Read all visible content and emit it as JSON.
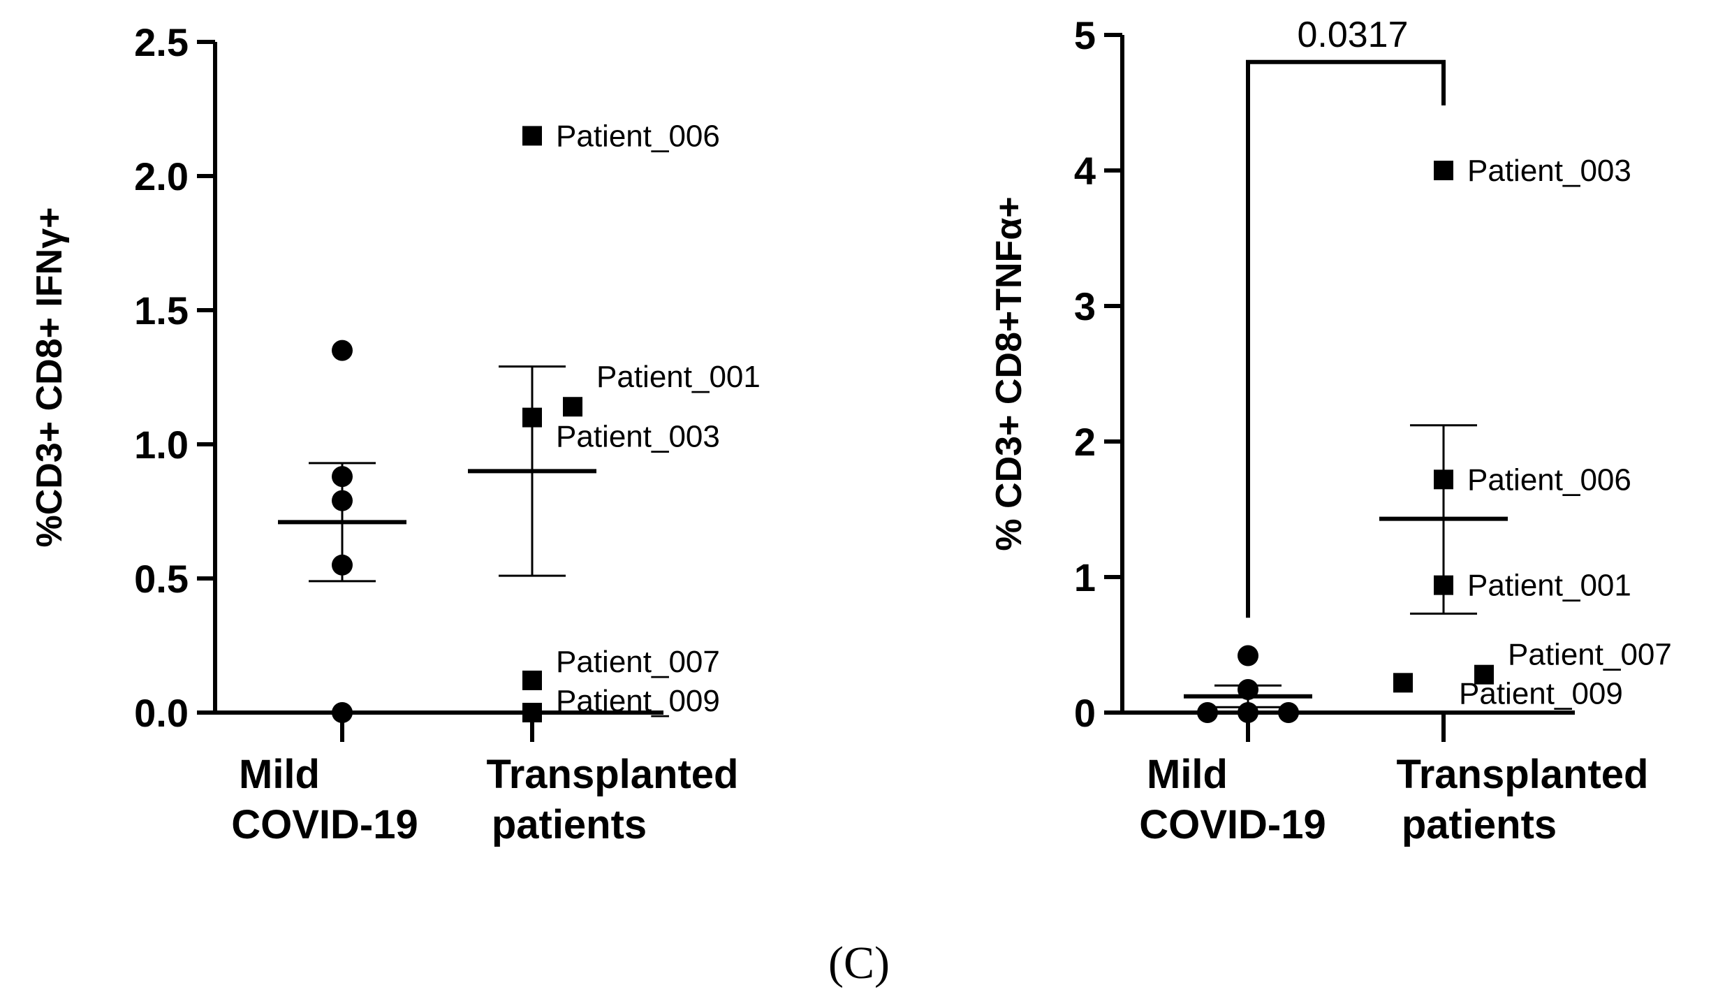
{
  "panel_label": "(C)",
  "chart_data": [
    {
      "type": "scatter",
      "ylabel": "%CD3+ CD8+ IFNγ+",
      "ylim": [
        0,
        2.5
      ],
      "yticks": [
        0,
        0.5,
        1,
        1.5,
        2,
        2.5
      ],
      "yticklabels": [
        "0.0",
        "0.5",
        "1.0",
        "1.5",
        "2.0",
        "2.5"
      ],
      "categories": [
        {
          "line1": "Mild",
          "line2": "COVID-19"
        },
        {
          "line1": "Transplanted",
          "line2": "patients"
        }
      ],
      "series": [
        {
          "name": "Mild COVID-19",
          "marker": "circle",
          "cat": 0,
          "points": [
            {
              "v": 1.35,
              "off": 0,
              "label": ""
            },
            {
              "v": 0.88,
              "off": 0,
              "label": ""
            },
            {
              "v": 0.79,
              "off": 0,
              "label": ""
            },
            {
              "v": 0.55,
              "off": 0,
              "label": ""
            },
            {
              "v": 0.0,
              "off": 0,
              "label": ""
            }
          ],
          "mean": 0.71,
          "err_low": 0.49,
          "err_high": 0.93
        },
        {
          "name": "Transplanted patients",
          "marker": "square",
          "cat": 1,
          "points": [
            {
              "v": 2.15,
              "off": 0,
              "label": "Patient_006"
            },
            {
              "v": 1.14,
              "off": 1,
              "label": "Patient_001"
            },
            {
              "v": 1.1,
              "off": 0,
              "label": "Patient_003"
            },
            {
              "v": 0.12,
              "off": 0,
              "label": "Patient_007"
            },
            {
              "v": 0.0,
              "off": 0,
              "label": "Patient_009"
            }
          ],
          "mean": 0.9,
          "err_low": 0.51,
          "err_high": 1.29
        }
      ],
      "significance": null
    },
    {
      "type": "scatter",
      "ylabel": "% CD3+ CD8+TNFα+",
      "ylim": [
        0,
        5
      ],
      "yticks": [
        0,
        1,
        2,
        3,
        4,
        5
      ],
      "yticklabels": [
        "0",
        "1",
        "2",
        "3",
        "4",
        "5"
      ],
      "categories": [
        {
          "line1": "Mild",
          "line2": "COVID-19"
        },
        {
          "line1": "Transplanted",
          "line2": "patients"
        }
      ],
      "series": [
        {
          "name": "Mild COVID-19",
          "marker": "circle",
          "cat": 0,
          "points": [
            {
              "v": 0.42,
              "off": 0,
              "label": ""
            },
            {
              "v": 0.17,
              "off": 0,
              "label": ""
            },
            {
              "v": 0.0,
              "off": -1,
              "label": ""
            },
            {
              "v": 0.0,
              "off": 0,
              "label": ""
            },
            {
              "v": 0.0,
              "off": 1,
              "label": ""
            }
          ],
          "mean": 0.12,
          "err_low": 0.04,
          "err_high": 0.2
        },
        {
          "name": "Transplanted patients",
          "marker": "square",
          "cat": 1,
          "points": [
            {
              "v": 4.0,
              "off": 0,
              "label": "Patient_003"
            },
            {
              "v": 1.72,
              "off": 0,
              "label": "Patient_006"
            },
            {
              "v": 0.94,
              "off": 0,
              "label": "Patient_001"
            },
            {
              "v": 0.28,
              "off": 1,
              "label": "Patient_007"
            },
            {
              "v": 0.22,
              "off": -1,
              "label": "Patient_009"
            }
          ],
          "mean": 1.43,
          "err_low": 0.73,
          "err_high": 2.12
        }
      ],
      "significance": {
        "text": "0.0317",
        "y": 4.8
      }
    }
  ]
}
